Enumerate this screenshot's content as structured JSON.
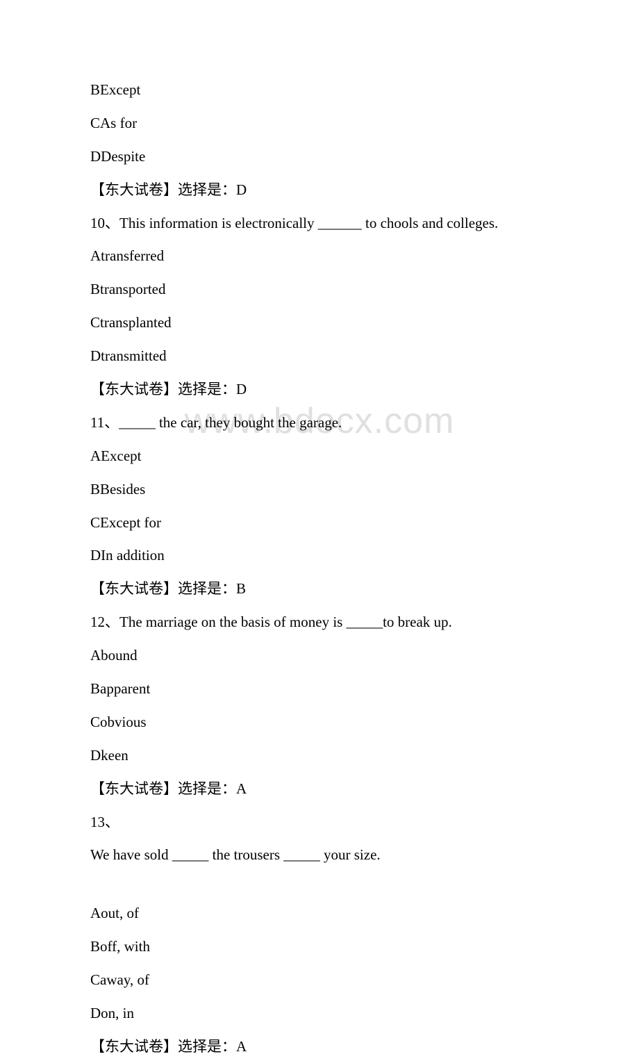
{
  "watermark": "www.bdocx.com",
  "lines": [
    "BExcept",
    "CAs for",
    "DDespite",
    "【东大试卷】选择是：D",
    "10、This information is electronically ______ to chools and colleges.",
    "Atransferred",
    "Btransported",
    "Ctransplanted",
    "Dtransmitted",
    "【东大试卷】选择是：D",
    "11、_____ the car, they bought the garage.",
    "AExcept",
    "BBesides",
    "CExcept for",
    "DIn addition",
    "【东大试卷】选择是：B",
    "12、The marriage on the basis of money is _____to break up.",
    "Abound",
    "Bapparent",
    "Cobvious",
    "Dkeen",
    "【东大试卷】选择是：A",
    "13、",
    "We have sold _____ the trousers _____ your size.",
    "",
    "Aout, of",
    "Boff, with",
    "Caway, of",
    "Don, in",
    "【东大试卷】选择是：A"
  ]
}
